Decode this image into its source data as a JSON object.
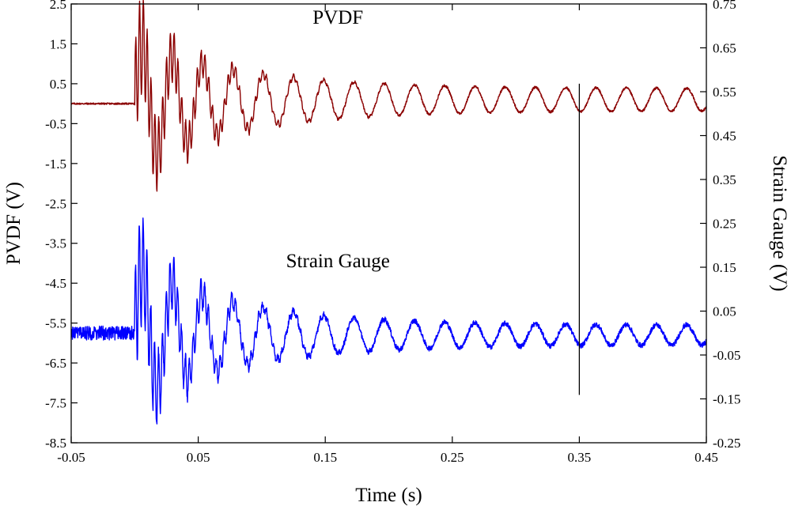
{
  "chart_data": {
    "type": "line",
    "title": "",
    "xlabel": "Time (s)",
    "ylabel_left": "PVDF (V)",
    "ylabel_right": "Strain Gauge (V)",
    "xlim": [
      -0.05,
      0.45
    ],
    "ylim_left": [
      -8.5,
      2.5
    ],
    "ylim_right": [
      -0.25,
      0.75
    ],
    "x_ticks": [
      "-0.05",
      "0.05",
      "0.15",
      "0.25",
      "0.35",
      "0.45"
    ],
    "y_left_ticks": [
      "2.5",
      "1.5",
      "0.5",
      "-0.5",
      "-1.5",
      "-2.5",
      "-3.5",
      "-4.5",
      "-5.5",
      "-6.5",
      "-7.5",
      "-8.5"
    ],
    "y_right_ticks": [
      "0.75",
      "0.65",
      "0.55",
      "0.45",
      "0.35",
      "0.25",
      "0.15",
      "0.05",
      "-0.05",
      "-0.15",
      "-0.25"
    ],
    "grid": false,
    "series": [
      {
        "name": "PVDF",
        "axis": "left",
        "color": "#8b0000",
        "baseline_before_impact": 0.0,
        "impact_time": 0.0,
        "initial_peak_amplitude": 2.2,
        "late_amplitude": 0.4,
        "late_center": 0.1,
        "beat_frequency_hz": 42
      },
      {
        "name": "Strain Gauge",
        "axis": "left",
        "color": "#0000ff",
        "baseline_before_impact": -5.75,
        "impact_time": 0.0,
        "initial_peak_amplitude": 2.4,
        "late_amplitude": 0.35,
        "late_center": -5.8,
        "beat_frequency_hz": 42
      }
    ],
    "annotations": [
      {
        "text": "PVDF",
        "x": 0.16,
        "y": 2.0
      },
      {
        "text": "Strain Gauge",
        "x": 0.16,
        "y": -4.1
      }
    ],
    "vertical_marker": {
      "x": 0.35,
      "y_from": 0.5,
      "y_to": -7.3,
      "color": "#000000"
    }
  }
}
